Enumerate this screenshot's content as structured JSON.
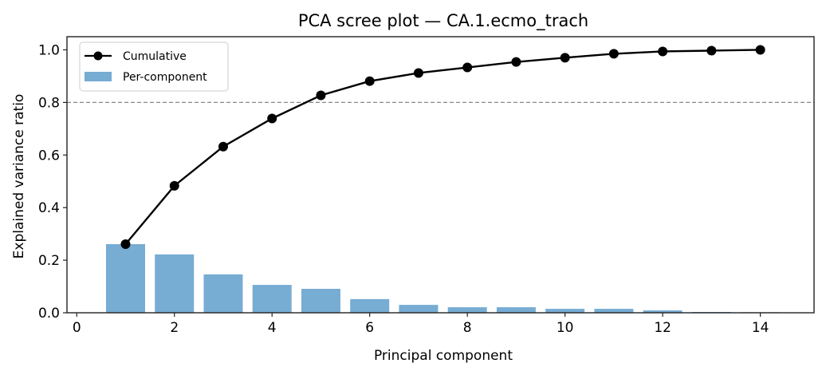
{
  "chart_data": {
    "type": "bar",
    "title": "PCA scree plot — CA.1.ecmo_trach",
    "xlabel": "Principal component",
    "ylabel": "Explained variance ratio",
    "xlim": [
      -0.2,
      15.1
    ],
    "ylim": [
      0.0,
      1.05
    ],
    "xticks": [
      0,
      2,
      4,
      6,
      8,
      10,
      12,
      14
    ],
    "xtick_labels": [
      "0",
      "2",
      "4",
      "6",
      "8",
      "10",
      "12",
      "14"
    ],
    "yticks": [
      0.0,
      0.2,
      0.4,
      0.6,
      0.8,
      1.0
    ],
    "ytick_labels": [
      "0.0",
      "0.2",
      "0.4",
      "0.6",
      "0.8",
      "1.0"
    ],
    "grid": false,
    "legend_position": "upper left",
    "categories": [
      1,
      2,
      3,
      4,
      5,
      6,
      7,
      8,
      9,
      10,
      11,
      12,
      13,
      14
    ],
    "series": [
      {
        "name": "Per-component",
        "type": "bar",
        "color": "#77acd3",
        "values": [
          0.261,
          0.222,
          0.146,
          0.106,
          0.091,
          0.052,
          0.03,
          0.021,
          0.021,
          0.015,
          0.015,
          0.009,
          0.003,
          0.002
        ]
      },
      {
        "name": "Cumulative",
        "type": "line",
        "marker": "circle",
        "color": "#000000",
        "values": [
          0.261,
          0.483,
          0.632,
          0.739,
          0.827,
          0.881,
          0.912,
          0.933,
          0.954,
          0.97,
          0.985,
          0.994,
          0.997,
          1.0
        ]
      }
    ],
    "annotations": [
      {
        "type": "hline",
        "y": 0.8,
        "style": "dashed",
        "color": "#888888"
      }
    ]
  },
  "legend": {
    "items": [
      {
        "label": "Cumulative",
        "kind": "line-marker"
      },
      {
        "label": "Per-component",
        "kind": "patch"
      }
    ]
  }
}
